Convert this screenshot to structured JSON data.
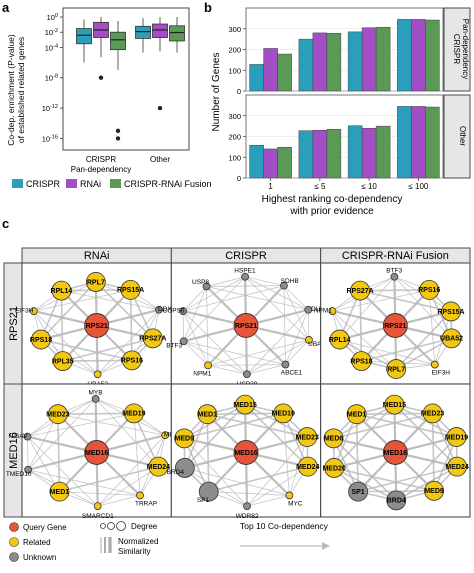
{
  "panel_a": {
    "letter": "a",
    "ylabel_line1": "Co-dep. enrichment (P-value)",
    "ylabel_line2": "of established related genes",
    "yticks": [
      "10^-16",
      "10^-12",
      "10^-8",
      "10^-4",
      "10^-2",
      "10^0"
    ],
    "xticks": [
      "CRISPR",
      "Other"
    ],
    "xtick_sub": "Pan-dependency",
    "chart_data": {
      "type": "box",
      "yscale": "log",
      "categories": [
        "CRISPR Pan-dependency",
        "Other"
      ],
      "series": [
        {
          "name": "CRISPR",
          "color": "#2a9fbc",
          "boxes": [
            {
              "q1": 0.0003,
              "median": 0.004,
              "q3": 0.03,
              "whisker_low": 1e-06,
              "whisker_high": 0.5
            },
            {
              "q1": 0.0015,
              "median": 0.012,
              "q3": 0.06,
              "whisker_low": 2e-05,
              "whisker_high": 0.7
            }
          ],
          "outliers": [
            [],
            []
          ]
        },
        {
          "name": "RNAi",
          "color": "#a24ec4",
          "boxes": [
            {
              "q1": 0.002,
              "median": 0.02,
              "q3": 0.2,
              "whisker_low": 5e-06,
              "whisker_high": 1
            },
            {
              "q1": 0.002,
              "median": 0.02,
              "q3": 0.12,
              "whisker_low": 3e-05,
              "whisker_high": 1
            }
          ],
          "outliers": [
            [
              1e-08
            ],
            [
              1e-12
            ]
          ]
        },
        {
          "name": "CRISPR-RNAi Fusion",
          "color": "#5a9a54",
          "boxes": [
            {
              "q1": 5e-05,
              "median": 0.001,
              "q3": 0.01,
              "whisker_low": 1e-07,
              "whisker_high": 0.3
            },
            {
              "q1": 0.0007,
              "median": 0.009,
              "q3": 0.07,
              "whisker_low": 2e-05,
              "whisker_high": 1
            }
          ],
          "outliers": [
            [
              1e-16,
              1e-15
            ],
            []
          ]
        }
      ]
    }
  },
  "legend": [
    {
      "name": "CRISPR",
      "color": "#2a9fbc"
    },
    {
      "name": "RNAi",
      "color": "#a24ec4"
    },
    {
      "name": "CRISPR-RNAi Fusion",
      "color": "#5a9a54"
    }
  ],
  "panel_b": {
    "letter": "b",
    "ylabel": "Number of Genes",
    "xlabel_line1": "Highest ranking co-dependency",
    "xlabel_line2": "with prior evidence",
    "yticks": [
      "0",
      "100",
      "200",
      "300"
    ],
    "facet_top_line1": "CRISPR",
    "facet_top_line2": "Pan-dependency",
    "facet_bottom": "Other",
    "chart_data": {
      "type": "bar",
      "categories": [
        "1",
        "≤ 5",
        "≤ 10",
        "≤ 100"
      ],
      "ylim": [
        0,
        400
      ],
      "facets": [
        {
          "name": "CRISPR Pan-dependency",
          "series": [
            {
              "name": "CRISPR",
              "values": [
                128,
                250,
                285,
                345
              ]
            },
            {
              "name": "RNAi",
              "values": [
                205,
                280,
                305,
                345
              ]
            },
            {
              "name": "CRISPR-RNAi Fusion",
              "values": [
                178,
                278,
                307,
                342
              ]
            }
          ]
        },
        {
          "name": "Other",
          "series": [
            {
              "name": "CRISPR",
              "values": [
                158,
                228,
                252,
                345
              ]
            },
            {
              "name": "RNAi",
              "values": [
                140,
                230,
                240,
                345
              ]
            },
            {
              "name": "CRISPR-RNAi Fusion",
              "values": [
                148,
                235,
                250,
                342
              ]
            }
          ]
        }
      ]
    }
  },
  "panel_c": {
    "letter": "c",
    "columns": [
      "RNAi",
      "CRISPR",
      "CRISPR-RNAi Fusion"
    ],
    "rows": [
      "RPS21",
      "MED16"
    ],
    "networks": [
      [
        {
          "center": "RPS21",
          "nodes": [
            {
              "label": "RPL7",
              "type": "related",
              "size": "large",
              "lblpos": "in"
            },
            {
              "label": "RPS15A",
              "type": "related",
              "size": "large",
              "lblpos": "in"
            },
            {
              "label": "DDX27",
              "type": "unknown",
              "size": "small",
              "lblpos": "out"
            },
            {
              "label": "RPS27A",
              "type": "related",
              "size": "large",
              "lblpos": "in"
            },
            {
              "label": "RPS16",
              "type": "related",
              "size": "large",
              "lblpos": "in"
            },
            {
              "label": "UBA52",
              "type": "related",
              "size": "small",
              "lblpos": "out"
            },
            {
              "label": "RPL35",
              "type": "related",
              "size": "large",
              "lblpos": "in"
            },
            {
              "label": "RPS18",
              "type": "related",
              "size": "large",
              "lblpos": "in"
            },
            {
              "label": "EIF3H",
              "type": "related",
              "size": "small",
              "lblpos": "out"
            },
            {
              "label": "RPL14",
              "type": "related",
              "size": "large",
              "lblpos": "in"
            }
          ]
        },
        {
          "center": "RPS21",
          "nodes": [
            {
              "label": "HSPE1",
              "type": "unknown",
              "size": "small",
              "lblpos": "out"
            },
            {
              "label": "SDHB",
              "type": "unknown",
              "size": "small",
              "lblpos": "out"
            },
            {
              "label": "DUT",
              "type": "unknown",
              "size": "small",
              "lblpos": "out"
            },
            {
              "label": "UBA52",
              "type": "related",
              "size": "small",
              "lblpos": "out"
            },
            {
              "label": "ABCE1",
              "type": "unknown",
              "size": "small",
              "lblpos": "out"
            },
            {
              "label": "USP39",
              "type": "unknown",
              "size": "small",
              "lblpos": "out"
            },
            {
              "label": "NPM1",
              "type": "related",
              "size": "small",
              "lblpos": "out"
            },
            {
              "label": "BTF3",
              "type": "unknown",
              "size": "small",
              "lblpos": "out"
            },
            {
              "label": "COPS6",
              "type": "unknown",
              "size": "small",
              "lblpos": "out"
            },
            {
              "label": "USP8",
              "type": "unknown",
              "size": "small",
              "lblpos": "out"
            }
          ]
        },
        {
          "center": "RPS21",
          "nodes": [
            {
              "label": "BTF3",
              "type": "unknown",
              "size": "small",
              "lblpos": "out"
            },
            {
              "label": "RPS16",
              "type": "related",
              "size": "large",
              "lblpos": "in"
            },
            {
              "label": "RPS15A",
              "type": "related",
              "size": "large",
              "lblpos": "in"
            },
            {
              "label": "UBA52",
              "type": "related",
              "size": "large",
              "lblpos": "in"
            },
            {
              "label": "EIF3H",
              "type": "related",
              "size": "small",
              "lblpos": "out"
            },
            {
              "label": "RPL7",
              "type": "related",
              "size": "large",
              "lblpos": "in"
            },
            {
              "label": "RPS18",
              "type": "related",
              "size": "large",
              "lblpos": "in"
            },
            {
              "label": "RPL14",
              "type": "related",
              "size": "large",
              "lblpos": "in"
            },
            {
              "label": "NPM1",
              "type": "related",
              "size": "small",
              "lblpos": "out"
            },
            {
              "label": "RPS27A",
              "type": "related",
              "size": "large",
              "lblpos": "in"
            }
          ]
        }
      ],
      [
        {
          "center": "MED16",
          "nodes": [
            {
              "label": "MYB",
              "type": "unknown",
              "size": "small",
              "lblpos": "out"
            },
            {
              "label": "MED19",
              "type": "related",
              "size": "large",
              "lblpos": "in"
            },
            {
              "label": "MED15",
              "type": "related",
              "size": "small",
              "lblpos": "out"
            },
            {
              "label": "MED24",
              "type": "related",
              "size": "large",
              "lblpos": "in"
            },
            {
              "label": "TRRAP",
              "type": "related",
              "size": "small",
              "lblpos": "out"
            },
            {
              "label": "SMARCD1",
              "type": "related",
              "size": "small",
              "lblpos": "out"
            },
            {
              "label": "MED1",
              "type": "related",
              "size": "large",
              "lblpos": "in"
            },
            {
              "label": "TMED10",
              "type": "unknown",
              "size": "small",
              "lblpos": "out"
            },
            {
              "label": "ITGAV",
              "type": "unknown",
              "size": "small",
              "lblpos": "out"
            },
            {
              "label": "MED23",
              "type": "related",
              "size": "large",
              "lblpos": "in"
            }
          ]
        },
        {
          "center": "MED16",
          "nodes": [
            {
              "label": "MED15",
              "type": "related",
              "size": "large",
              "lblpos": "in"
            },
            {
              "label": "MED19",
              "type": "related",
              "size": "large",
              "lblpos": "in"
            },
            {
              "label": "MED23",
              "type": "related",
              "size": "large",
              "lblpos": "in"
            },
            {
              "label": "MED24",
              "type": "related",
              "size": "large",
              "lblpos": "in"
            },
            {
              "label": "MYC",
              "type": "related",
              "size": "small",
              "lblpos": "out"
            },
            {
              "label": "WDR82",
              "type": "unknown",
              "size": "small",
              "lblpos": "out"
            },
            {
              "label": "SP1",
              "type": "unknown",
              "size": "large",
              "lblpos": "out"
            },
            {
              "label": "BRD4",
              "type": "unknown",
              "size": "large",
              "lblpos": "out"
            },
            {
              "label": "MED9",
              "type": "related",
              "size": "large",
              "lblpos": "in"
            },
            {
              "label": "MED1",
              "type": "related",
              "size": "large",
              "lblpos": "in"
            }
          ]
        },
        {
          "center": "MED16",
          "nodes": [
            {
              "label": "MED15",
              "type": "related",
              "size": "large",
              "lblpos": "in"
            },
            {
              "label": "MED23",
              "type": "related",
              "size": "large",
              "lblpos": "in"
            },
            {
              "label": "MED19",
              "type": "related",
              "size": "large",
              "lblpos": "in"
            },
            {
              "label": "MED24",
              "type": "related",
              "size": "large",
              "lblpos": "in"
            },
            {
              "label": "MED9",
              "type": "related",
              "size": "large",
              "lblpos": "in"
            },
            {
              "label": "BRD4",
              "type": "unknown",
              "size": "large",
              "lblpos": "in"
            },
            {
              "label": "SP1",
              "type": "unknown",
              "size": "large",
              "lblpos": "in"
            },
            {
              "label": "MED20",
              "type": "related",
              "size": "large",
              "lblpos": "in"
            },
            {
              "label": "MED6",
              "type": "related",
              "size": "large",
              "lblpos": "in"
            },
            {
              "label": "MED1",
              "type": "related",
              "size": "large",
              "lblpos": "in"
            }
          ]
        }
      ]
    ],
    "legend": {
      "query": "Query Gene",
      "related": "Related",
      "unknown": "Unknown",
      "degree": "Degree",
      "similarity_line1": "Normalized",
      "similarity_line2": "Similarity",
      "arrow": "Top 10 Co-dependency"
    },
    "colors": {
      "query": "#e8543a",
      "related": "#f2c811",
      "unknown": "#8c8c8c"
    }
  }
}
